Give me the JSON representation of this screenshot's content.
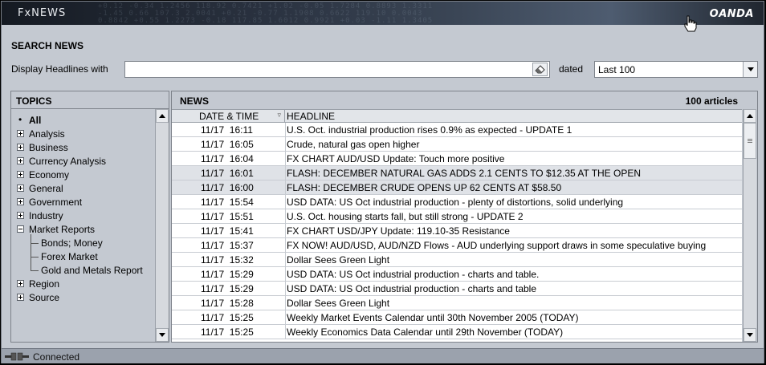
{
  "header": {
    "app_logo": "FxNEWS",
    "brand_logo": "OANDA"
  },
  "search": {
    "title": "SEARCH NEWS",
    "display_label": "Display Headlines with",
    "query_value": "",
    "dated_label": "dated",
    "dated_value": "Last 100"
  },
  "topics": {
    "title": "TOPICS",
    "items": [
      {
        "label": "All",
        "expander": "none",
        "level": 0,
        "bold": true
      },
      {
        "label": "Analysis",
        "expander": "plus",
        "level": 0
      },
      {
        "label": "Business",
        "expander": "plus",
        "level": 0
      },
      {
        "label": "Currency Analysis",
        "expander": "plus",
        "level": 0
      },
      {
        "label": "Economy",
        "expander": "plus",
        "level": 0
      },
      {
        "label": "General",
        "expander": "plus",
        "level": 0
      },
      {
        "label": "Government",
        "expander": "plus",
        "level": 0
      },
      {
        "label": "Industry",
        "expander": "plus",
        "level": 0
      },
      {
        "label": "Market Reports",
        "expander": "minus",
        "level": 0
      },
      {
        "label": "Bonds; Money",
        "expander": "none",
        "level": 1
      },
      {
        "label": "Forex Market",
        "expander": "none",
        "level": 1
      },
      {
        "label": "Gold and Metals Report",
        "expander": "none",
        "level": 1
      },
      {
        "label": "Region",
        "expander": "plus",
        "level": 0
      },
      {
        "label": "Source",
        "expander": "plus",
        "level": 0
      }
    ]
  },
  "news": {
    "title": "NEWS",
    "count": "100 articles",
    "columns": {
      "date": "DATE & TIME",
      "headline": "HEADLINE"
    },
    "rows": [
      {
        "datetime": "11/17  16:11",
        "headline": "U.S. Oct. industrial production rises 0.9% as expected - UPDATE 1",
        "selected": false
      },
      {
        "datetime": "11/17  16:05",
        "headline": "Crude, natural gas open higher",
        "selected": false
      },
      {
        "datetime": "11/17  16:04",
        "headline": "FX CHART AUD/USD Update: Touch more positive",
        "selected": false
      },
      {
        "datetime": "11/17  16:01",
        "headline": "FLASH: DECEMBER NATURAL GAS ADDS 2.1 CENTS TO $12.35 AT THE OPEN",
        "selected": true
      },
      {
        "datetime": "11/17  16:00",
        "headline": "FLASH: DECEMBER CRUDE OPENS UP 62 CENTS AT $58.50",
        "selected": true
      },
      {
        "datetime": "11/17  15:54",
        "headline": "USD DATA: US Oct industrial production - plenty of distortions, solid underlying",
        "selected": false
      },
      {
        "datetime": "11/17  15:51",
        "headline": "U.S. Oct. housing starts fall, but still strong - UPDATE 2",
        "selected": false
      },
      {
        "datetime": "11/17  15:41",
        "headline": "FX CHART USD/JPY Update: 119.10-35 Resistance",
        "selected": false
      },
      {
        "datetime": "11/17  15:37",
        "headline": "FX NOW! AUD/USD, AUD/NZD Flows - AUD underlying support draws in some speculative buying",
        "selected": false
      },
      {
        "datetime": "11/17  15:32",
        "headline": "Dollar Sees Green Light",
        "selected": false
      },
      {
        "datetime": "11/17  15:29",
        "headline": "USD DATA: US Oct industrial production - charts and table.",
        "selected": false
      },
      {
        "datetime": "11/17  15:29",
        "headline": "USD DATA: US Oct industrial production - charts and table",
        "selected": false
      },
      {
        "datetime": "11/17  15:28",
        "headline": "Dollar Sees Green Light",
        "selected": false
      },
      {
        "datetime": "11/17  15:25",
        "headline": "Weekly Market Events Calendar until 30th November 2005 (TODAY)",
        "selected": false
      },
      {
        "datetime": "11/17  15:25",
        "headline": "Weekly Economics Data Calendar until 29th November (TODAY)",
        "selected": false
      }
    ]
  },
  "status": {
    "text": "Connected",
    "icon": "connection-plug-icon"
  },
  "icons": {
    "clear": "eraser-icon",
    "dropdown": "chevron-down-icon",
    "scroll_up": "scroll-up-icon",
    "scroll_down": "scroll-down-icon",
    "sort": "sort-icon",
    "cursor": "hand-cursor-icon"
  }
}
